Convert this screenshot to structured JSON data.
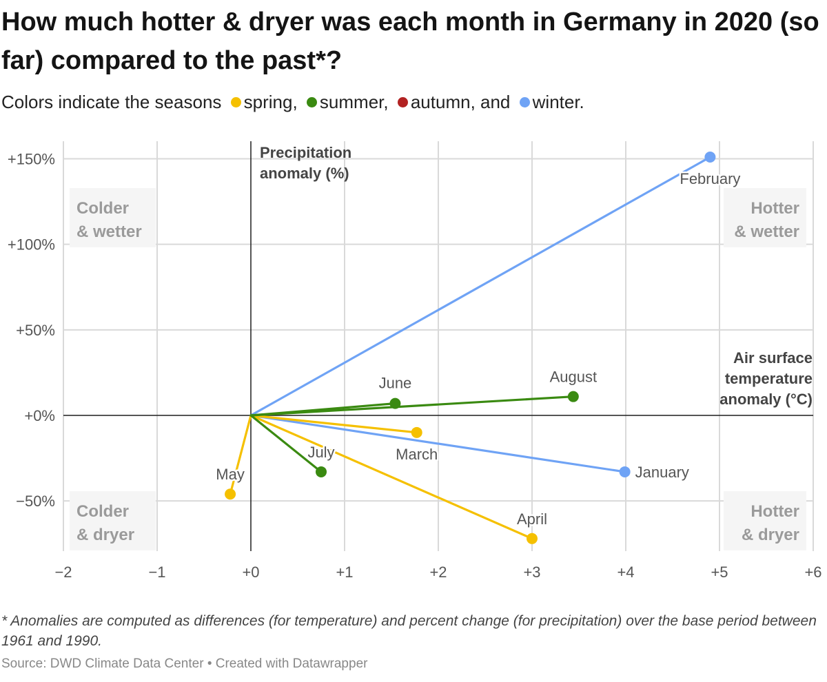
{
  "title": "How much hotter & dryer was each month in Germany in 2020 (so far) compared to the past*?",
  "subtitle": {
    "intro": "Colors indicate the seasons",
    "items": [
      {
        "label": "spring,",
        "color": "#f5c000"
      },
      {
        "label": "summer,",
        "color": "#3a8a11"
      },
      {
        "label": "autumn, and",
        "color": "#b22222"
      },
      {
        "label": "winter.",
        "color": "#6fa3f5"
      }
    ]
  },
  "colors": {
    "spring": "#f5c000",
    "summer": "#3a8a11",
    "autumn": "#b22222",
    "winter": "#6fa3f5"
  },
  "chart_data": {
    "type": "scatter",
    "xlabel": "Air surface temperature anomaly (°C)",
    "ylabel": "Precipitation anomaly (%)",
    "xlabel_lines": [
      "Air surface",
      "temperature",
      "anomaly (°C)"
    ],
    "ylabel_lines": [
      "Precipitation",
      "anomaly (%)"
    ],
    "xlim": [
      -2,
      6
    ],
    "ylim": [
      -72,
      150
    ],
    "xticks": [
      -2,
      -1,
      0,
      1,
      2,
      3,
      4,
      5,
      6
    ],
    "xtick_labels": [
      "−2",
      "−1",
      "+0",
      "+1",
      "+2",
      "+3",
      "+4",
      "+5",
      "+6"
    ],
    "yticks": [
      150,
      100,
      50,
      0,
      -50
    ],
    "ytick_labels": [
      "+150%",
      "+100%",
      "+50%",
      "+0%",
      "−50%"
    ],
    "grid": true,
    "quadrants": [
      {
        "lines": [
          "Colder",
          "& wetter"
        ],
        "position": "top-left"
      },
      {
        "lines": [
          "Hotter",
          "& wetter"
        ],
        "position": "top-right"
      },
      {
        "lines": [
          "Colder",
          "& dryer"
        ],
        "position": "bottom-left"
      },
      {
        "lines": [
          "Hotter",
          "& dryer"
        ],
        "position": "bottom-right"
      }
    ],
    "points": [
      {
        "name": "January",
        "x": 3.99,
        "y": -33,
        "season": "winter"
      },
      {
        "name": "February",
        "x": 4.9,
        "y": 151,
        "season": "winter"
      },
      {
        "name": "March",
        "x": 1.77,
        "y": -10,
        "season": "spring"
      },
      {
        "name": "April",
        "x": 3.0,
        "y": -72,
        "season": "spring"
      },
      {
        "name": "May",
        "x": -0.22,
        "y": -46,
        "season": "spring"
      },
      {
        "name": "June",
        "x": 1.54,
        "y": 7,
        "season": "summer"
      },
      {
        "name": "July",
        "x": 0.75,
        "y": -33,
        "season": "summer"
      },
      {
        "name": "August",
        "x": 3.44,
        "y": 11,
        "season": "summer"
      }
    ]
  },
  "footnote": "* Anomalies are computed as differences (for temperature) and percent change (for precipitation) over the base period between 1961 and 1990.",
  "source": "Source: DWD Climate Data Center • Created with Datawrapper"
}
